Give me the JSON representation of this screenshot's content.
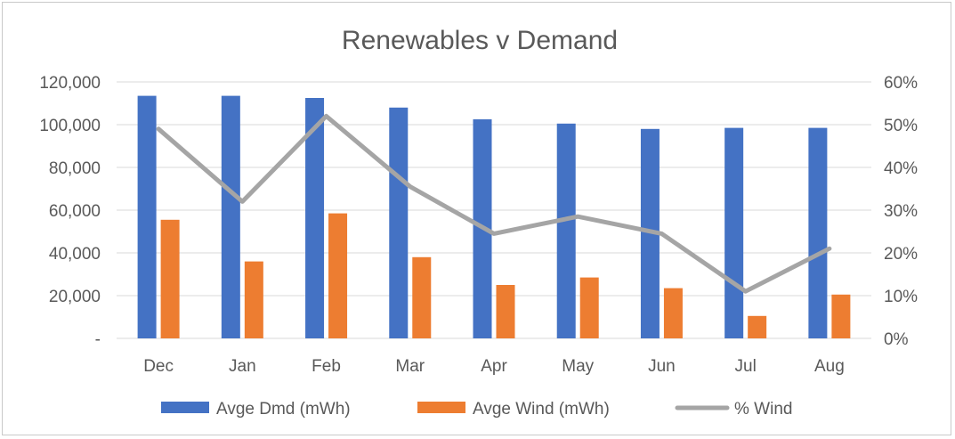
{
  "chart_data": {
    "type": "bar",
    "title": "Renewables v Demand",
    "categories": [
      "Dec",
      "Jan",
      "Feb",
      "Mar",
      "Apr",
      "May",
      "Jun",
      "Jul",
      "Aug"
    ],
    "series": [
      {
        "name": "Avge Dmd (mWh)",
        "type": "bar",
        "axis": "left",
        "color": "#4472C4",
        "values": [
          113500,
          113500,
          112500,
          108000,
          102500,
          100500,
          98000,
          98500,
          98500
        ]
      },
      {
        "name": "Avge Wind (mWh)",
        "type": "bar",
        "axis": "left",
        "color": "#ED7D31",
        "values": [
          55500,
          36000,
          58500,
          38000,
          25000,
          28500,
          23500,
          10500,
          20500
        ]
      },
      {
        "name": "% Wind",
        "type": "line",
        "axis": "right",
        "color": "#A5A5A5",
        "values": [
          0.49,
          0.32,
          0.52,
          0.355,
          0.245,
          0.285,
          0.245,
          0.11,
          0.21
        ]
      }
    ],
    "y_left": {
      "min": 0,
      "max": 120000,
      "tick_values": [
        0,
        20000,
        40000,
        60000,
        80000,
        100000,
        120000
      ],
      "tick_labels": [
        "-",
        "20,000",
        "40,000",
        "60,000",
        "80,000",
        "100,000",
        "120,000"
      ]
    },
    "y_right": {
      "min": 0,
      "max": 0.6,
      "tick_values": [
        0,
        0.1,
        0.2,
        0.3,
        0.4,
        0.5,
        0.6
      ],
      "tick_labels": [
        "0%",
        "10%",
        "20%",
        "30%",
        "40%",
        "50%",
        "60%"
      ]
    },
    "grid": true,
    "legend_position": "bottom"
  }
}
